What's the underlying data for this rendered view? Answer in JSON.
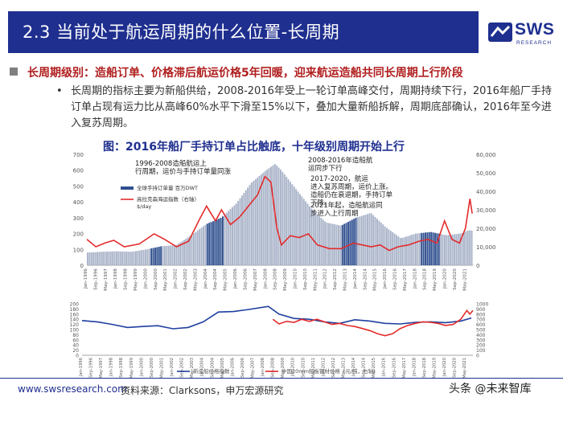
{
  "header": {
    "title": "2.3 当前处于航运周期的什么位置-长周期"
  },
  "logo": {
    "text": "SWS",
    "sub": "RESEARCH",
    "brand_color": "#1f2f8f"
  },
  "section_point": "长周期级别：造船订单、价格滞后航运价格5年回暖，迎来航运造船共同长周期上行阶段",
  "bullet": "•",
  "paragraph": "长周期的指标主要为新船供给，2008-2016年受上一轮订单高峰交付，周期持续下行，2016年船厂手持订单占现有运力比从高峰60%水平下滑至15%以下，叠加大量新船拆解，周期底部确认，2016年至今进入复苏周期。",
  "caption": "图：2016年船厂手持订单占比触底，十年级别周期开始上行",
  "footer": {
    "url": "www.swsresearch.com",
    "source": "资料来源：Clarksons，申万宏源研究",
    "watermark": "头条 @未来智库"
  },
  "chart_data": [
    {
      "type": "bar",
      "x_tick_labels": [
        "Jan-1996",
        "Sep-1996",
        "May-1997",
        "Jan-1998",
        "Sep-1998",
        "May-1999",
        "Jan-2000",
        "Sep-2000",
        "May-2001",
        "Jan-2002",
        "Sep-2002",
        "May-2003",
        "Jan-2004",
        "Sep-2004",
        "May-2005",
        "Jan-2006",
        "Sep-2006",
        "May-2007",
        "Jan-2008",
        "Sep-2008",
        "May-2009",
        "Jan-2010",
        "Sep-2010",
        "May-2011",
        "Jan-2012",
        "Sep-2012",
        "May-2013",
        "Jan-2014",
        "Sep-2014",
        "May-2015",
        "Jan-2016",
        "Sep-2016",
        "May-2017",
        "Jan-2018",
        "Sep-2018",
        "May-2019",
        "Jan-2020",
        "Sep-2020",
        "May-2021"
      ],
      "y_left": {
        "range": [
          0,
          700
        ],
        "ticks": [
          "0",
          "100",
          "200",
          "300",
          "400",
          "500",
          "600",
          "700"
        ]
      },
      "y_right": {
        "range": [
          0,
          60000
        ],
        "ticks": [
          "0",
          "10,000",
          "20,000",
          "30,000",
          "40,000",
          "50,000",
          "60,000"
        ]
      },
      "legend": {
        "placement": "top-left",
        "items": [
          "全球手持订单量 百万DWT",
          "高拉克森海运指数（右轴） $/day"
        ]
      },
      "series": [
        {
          "name": "全球手持订单量 百万DWT",
          "axis": "left",
          "color": "#a9b3c9",
          "highlight_color": "#2f4f8f",
          "points": [
            [
              1996.0,
              80
            ],
            [
              1997.0,
              85
            ],
            [
              1998.0,
              88
            ],
            [
              1999.0,
              85
            ],
            [
              2000.0,
              100
            ],
            [
              2001.0,
              120
            ],
            [
              2002.0,
              128
            ],
            [
              2003.0,
              190
            ],
            [
              2004.0,
              260
            ],
            [
              2005.0,
              300
            ],
            [
              2006.0,
              390
            ],
            [
              2007.0,
              520
            ],
            [
              2008.0,
              600
            ],
            [
              2008.6,
              640
            ],
            [
              2009.0,
              600
            ],
            [
              2010.0,
              480
            ],
            [
              2011.0,
              360
            ],
            [
              2012.0,
              270
            ],
            [
              2013.0,
              250
            ],
            [
              2014.0,
              300
            ],
            [
              2015.0,
              330
            ],
            [
              2016.0,
              240
            ],
            [
              2017.0,
              170
            ],
            [
              2018.0,
              200
            ],
            [
              2019.0,
              210
            ],
            [
              2020.0,
              190
            ],
            [
              2021.0,
              200
            ],
            [
              2021.5,
              220
            ]
          ]
        },
        {
          "name": "高拉克森海运指数（右轴） $/day",
          "axis": "right",
          "color": "#e32b2b",
          "points": [
            [
              1996.0,
              14000
            ],
            [
              1996.6,
              10000
            ],
            [
              1997.2,
              12000
            ],
            [
              1997.8,
              13500
            ],
            [
              1998.5,
              10000
            ],
            [
              1999.5,
              11500
            ],
            [
              2000.5,
              17000
            ],
            [
              2001.2,
              14000
            ],
            [
              2002.0,
              10000
            ],
            [
              2002.8,
              13000
            ],
            [
              2003.6,
              26000
            ],
            [
              2004.0,
              32000
            ],
            [
              2004.6,
              24000
            ],
            [
              2005.0,
              30000
            ],
            [
              2005.6,
              22000
            ],
            [
              2006.2,
              26000
            ],
            [
              2006.8,
              32000
            ],
            [
              2007.4,
              38000
            ],
            [
              2007.9,
              48000
            ],
            [
              2008.3,
              45000
            ],
            [
              2008.7,
              20000
            ],
            [
              2009.0,
              11000
            ],
            [
              2009.6,
              16000
            ],
            [
              2010.2,
              15000
            ],
            [
              2010.8,
              17000
            ],
            [
              2011.4,
              11000
            ],
            [
              2012.2,
              9000
            ],
            [
              2013.0,
              9000
            ],
            [
              2013.8,
              12000
            ],
            [
              2014.4,
              11000
            ],
            [
              2015.0,
              10000
            ],
            [
              2015.6,
              11000
            ],
            [
              2016.2,
              8000
            ],
            [
              2016.8,
              10000
            ],
            [
              2017.5,
              11000
            ],
            [
              2018.2,
              13000
            ],
            [
              2018.8,
              14000
            ],
            [
              2019.4,
              12000
            ],
            [
              2019.9,
              24000
            ],
            [
              2020.4,
              14000
            ],
            [
              2020.9,
              12000
            ],
            [
              2021.3,
              20000
            ],
            [
              2021.6,
              36000
            ],
            [
              2021.75,
              28000
            ]
          ]
        }
      ],
      "highlight_periods": [
        [
          2000.3,
          2001.0
        ],
        [
          2004.0,
          2005.2
        ],
        [
          2013.0,
          2014.1
        ],
        [
          2018.3,
          2019.6
        ]
      ],
      "annotations": [
        "1996-2008造船航运上行周期，运价与手持订单量同涨",
        "2008-2016年造船航运同步下行",
        "2017-2020，航运进入复苏周期，运价上涨。造船仍在衰退期，手持订单下降。",
        "2021年起，造船航运同步进入上行周期"
      ]
    },
    {
      "type": "line",
      "x_tick_labels": [
        "Jan-1996",
        "Sep-1996",
        "May-1997",
        "Jan-1998",
        "Sep-1998",
        "May-1999",
        "Jan-2000",
        "Sep-2000",
        "May-2001",
        "Jan-2002",
        "Sep-2002",
        "May-2003",
        "Jan-2004",
        "Sep-2004",
        "May-2005",
        "Jan-2006",
        "Sep-2006",
        "May-2007",
        "Jan-2008",
        "Sep-2008",
        "May-2009",
        "Jan-2010",
        "Sep-2010",
        "May-2011",
        "Jan-2012",
        "Sep-2012",
        "May-2013",
        "Jan-2014",
        "Sep-2014",
        "May-2015",
        "Jan-2016",
        "Sep-2016",
        "May-2017",
        "Jan-2018",
        "Sep-2018",
        "May-2019",
        "Jan-2020",
        "Sep-2020",
        "May-2021"
      ],
      "y_left": {
        "range": [
          0,
          200
        ],
        "ticks": [
          "0",
          "20",
          "40",
          "60",
          "80",
          "100",
          "120",
          "140",
          "160",
          "180",
          "200"
        ]
      },
      "y_right": {
        "range": [
          0,
          1000
        ],
        "ticks": [
          "0",
          "100",
          "200",
          "300",
          "400",
          "500",
          "600",
          "700",
          "800",
          "900",
          "1000"
        ]
      },
      "legend": {
        "placement": "bottom",
        "items": [
          "新造船价格指数",
          "中国20mm船板钢材价格（元/吨，右轴）"
        ]
      },
      "series": [
        {
          "name": "新造船价格指数",
          "axis": "left",
          "color": "#1f3f9f",
          "points": [
            [
              1996.0,
              135
            ],
            [
              1997.0,
              130
            ],
            [
              1998.0,
              120
            ],
            [
              1999.0,
              108
            ],
            [
              2000.0,
              112
            ],
            [
              2001.0,
              115
            ],
            [
              2002.0,
              103
            ],
            [
              2003.0,
              108
            ],
            [
              2004.0,
              130
            ],
            [
              2005.0,
              168
            ],
            [
              2006.0,
              170
            ],
            [
              2007.0,
              178
            ],
            [
              2008.3,
              190
            ],
            [
              2009.0,
              160
            ],
            [
              2010.0,
              143
            ],
            [
              2011.0,
              140
            ],
            [
              2012.0,
              130
            ],
            [
              2013.0,
              124
            ],
            [
              2014.0,
              138
            ],
            [
              2015.0,
              133
            ],
            [
              2016.0,
              124
            ],
            [
              2017.0,
              122
            ],
            [
              2018.0,
              128
            ],
            [
              2019.0,
              130
            ],
            [
              2020.0,
              127
            ],
            [
              2021.0,
              133
            ],
            [
              2021.7,
              145
            ]
          ]
        },
        {
          "name": "中国20mm船板钢材价格（元/吨，右轴）",
          "axis": "right",
          "color": "#e32b2b",
          "points": [
            [
              2008.6,
              700
            ],
            [
              2009.0,
              610
            ],
            [
              2009.5,
              660
            ],
            [
              2010.0,
              640
            ],
            [
              2010.5,
              700
            ],
            [
              2011.0,
              660
            ],
            [
              2011.5,
              700
            ],
            [
              2012.0,
              650
            ],
            [
              2012.5,
              600
            ],
            [
              2013.0,
              620
            ],
            [
              2013.5,
              580
            ],
            [
              2014.0,
              560
            ],
            [
              2014.5,
              520
            ],
            [
              2015.0,
              480
            ],
            [
              2015.5,
              420
            ],
            [
              2016.0,
              380
            ],
            [
              2016.5,
              420
            ],
            [
              2017.0,
              520
            ],
            [
              2017.5,
              580
            ],
            [
              2018.0,
              620
            ],
            [
              2018.5,
              650
            ],
            [
              2019.0,
              640
            ],
            [
              2019.5,
              620
            ],
            [
              2020.0,
              580
            ],
            [
              2020.5,
              600
            ],
            [
              2021.0,
              700
            ],
            [
              2021.4,
              870
            ],
            [
              2021.6,
              800
            ],
            [
              2021.8,
              870
            ]
          ]
        }
      ]
    }
  ]
}
